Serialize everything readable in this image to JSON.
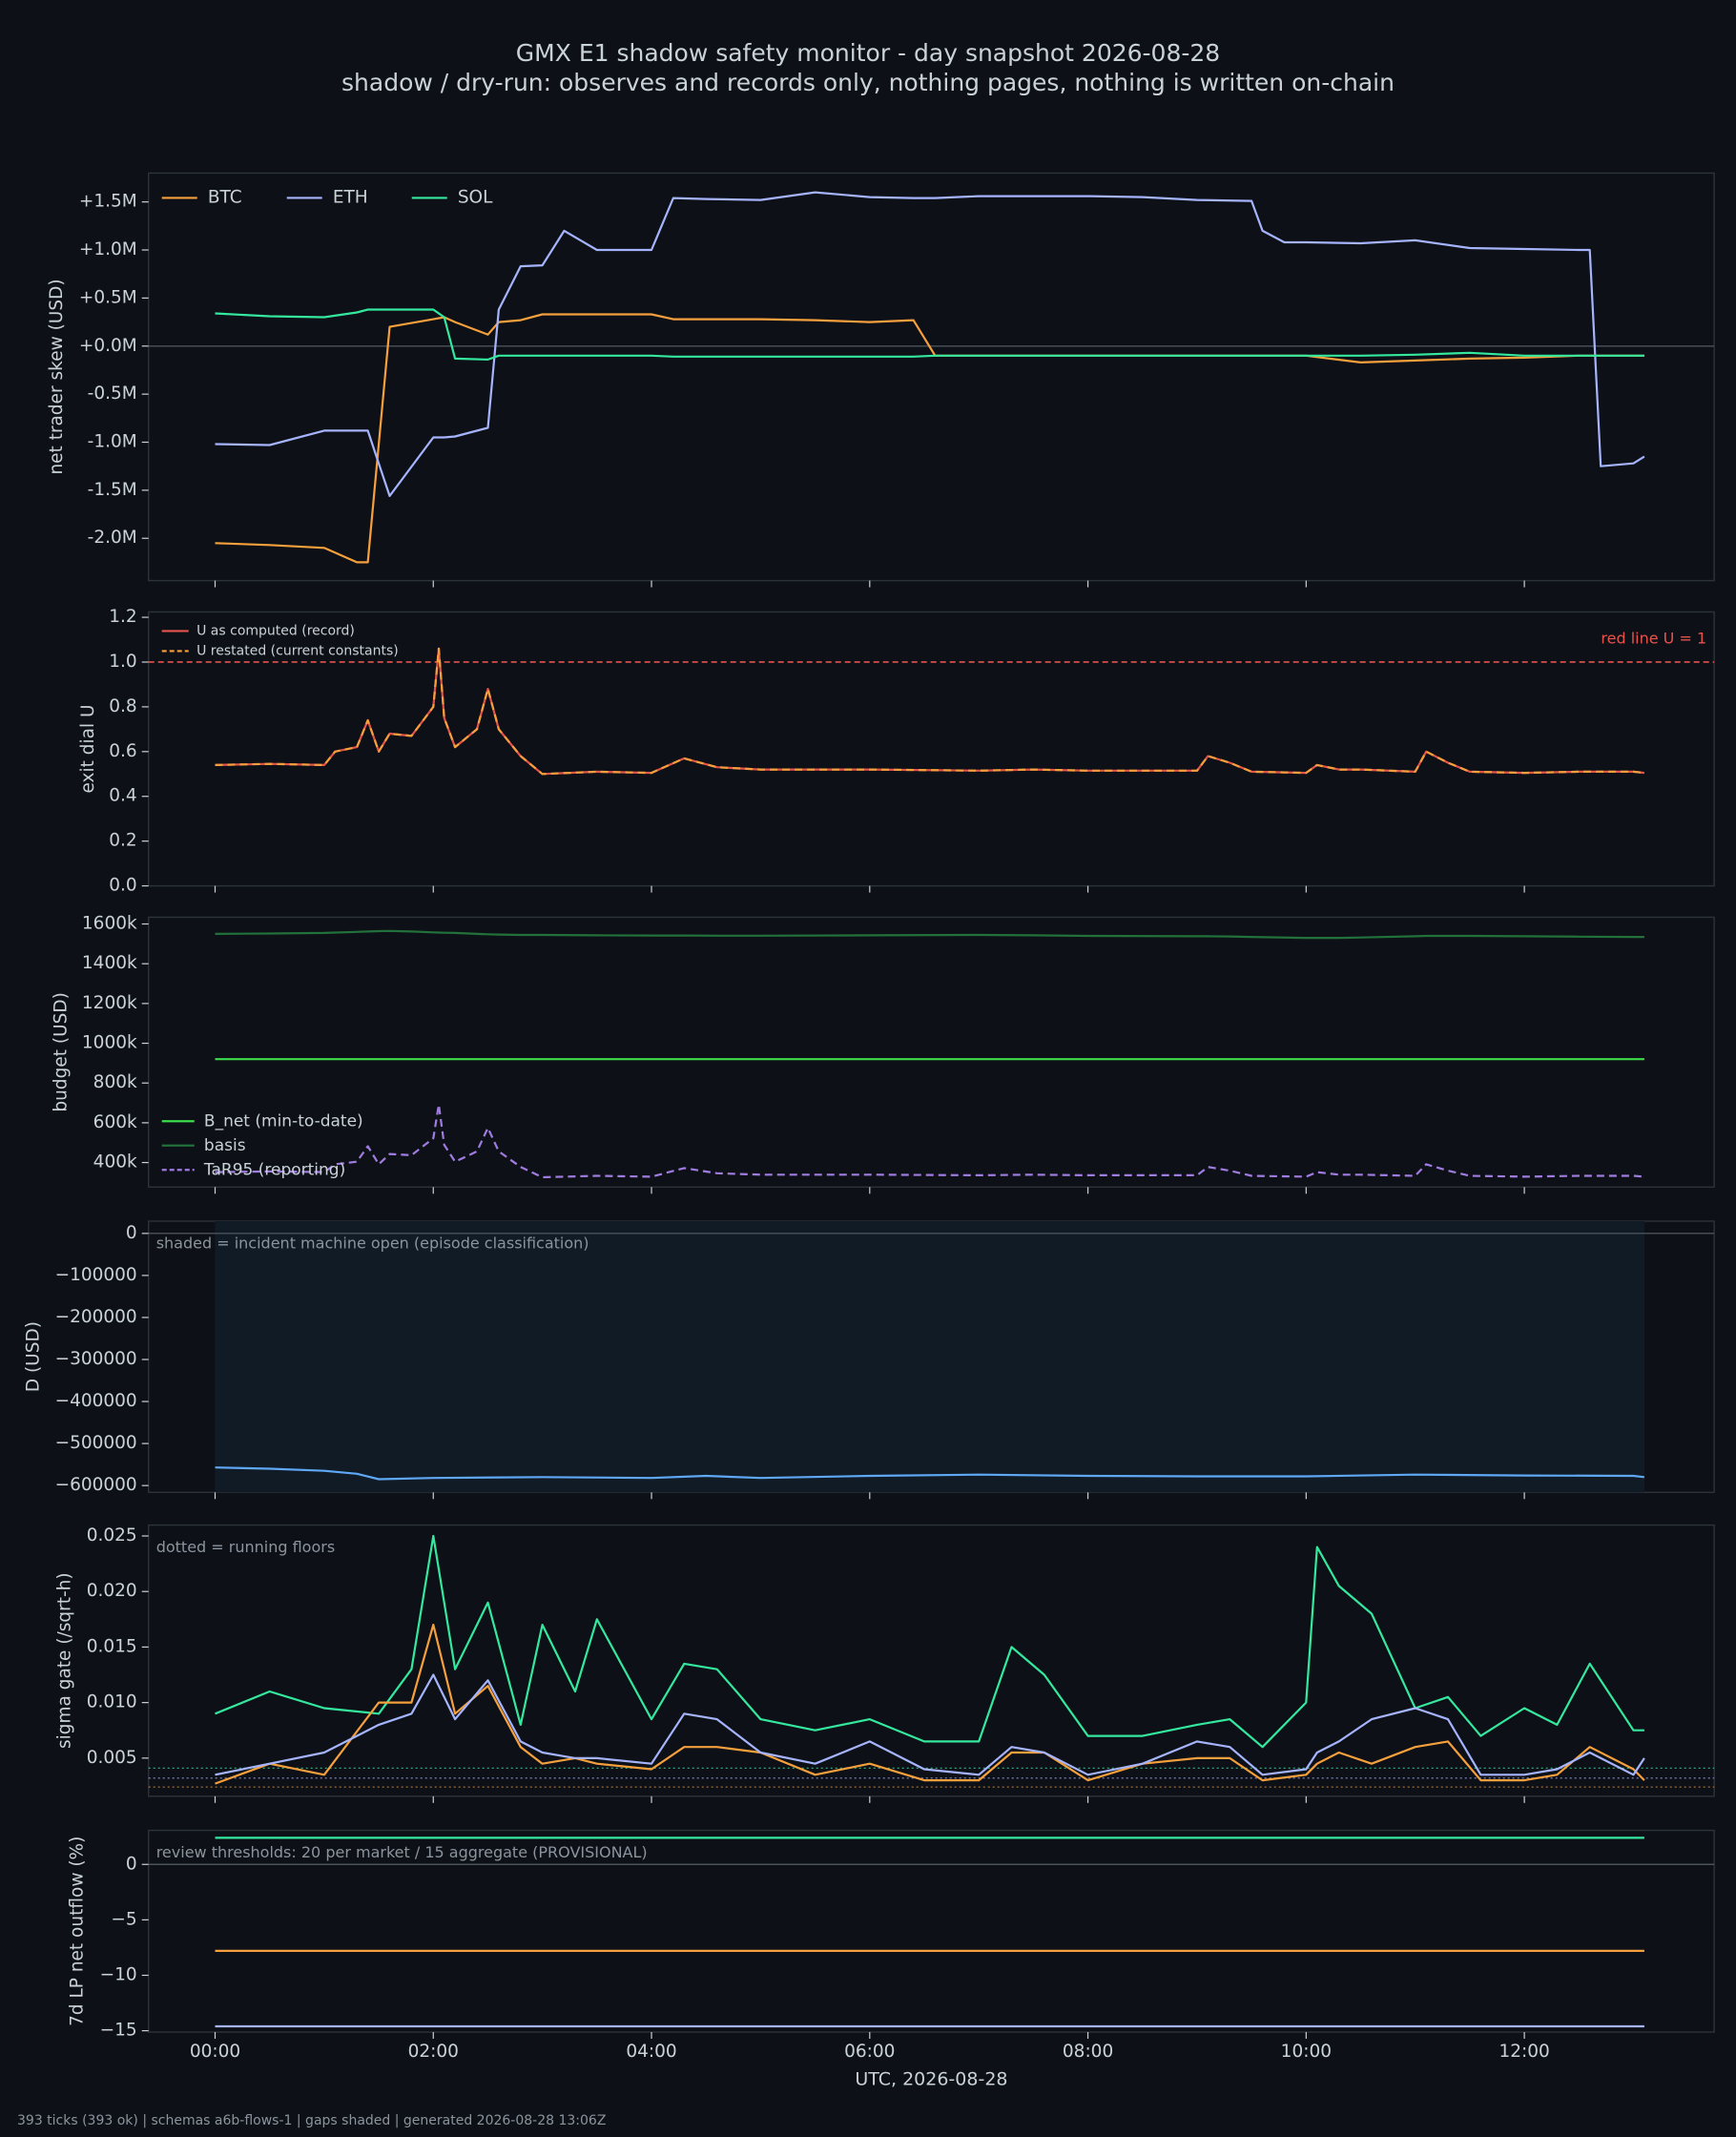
{
  "title": "GMX E1 shadow safety monitor - day snapshot 2026-08-28",
  "subtitle": "shadow / dry-run: observes and records only, nothing pages, nothing is written on-chain",
  "footer": "393 ticks (393 ok) | schemas a6b-flows-1 | gaps shaded | generated 2026-08-28 13:06Z",
  "chart_data": [
    {
      "type": "line",
      "ylabel": "net trader skew (USD)",
      "legend": "upper left",
      "zeroline": true,
      "x": [
        0,
        0.5,
        1,
        1.3,
        1.4,
        1.6,
        2,
        2.1,
        2.2,
        2.5,
        2.6,
        2.8,
        3,
        3.2,
        3.5,
        4,
        4.2,
        4.5,
        5,
        5.5,
        6,
        6.4,
        6.6,
        7,
        7.5,
        8,
        8.5,
        9,
        9.5,
        9.6,
        9.8,
        10,
        10.5,
        11,
        11.5,
        12,
        12.5,
        12.6,
        12.7,
        13,
        13.1
      ],
      "xlim": [
        -0.61,
        13.74
      ],
      "xticks": [
        0,
        2,
        4,
        6,
        8,
        10,
        12
      ],
      "ylim": [
        -2440000,
        1800000
      ],
      "yticks": [
        {
          "value": 1500000,
          "label": "+1.5M"
        },
        {
          "value": 1000000,
          "label": "+1.0M"
        },
        {
          "value": 500000,
          "label": "+0.5M"
        },
        {
          "value": 0,
          "label": "+0.0M"
        },
        {
          "value": -500000,
          "label": "-0.5M"
        },
        {
          "value": -1000000,
          "label": "-1.0M"
        },
        {
          "value": -1500000,
          "label": "-1.5M"
        },
        {
          "value": -2000000,
          "label": "-2.0M"
        }
      ],
      "series": [
        {
          "name": "BTC",
          "color": "#f5a03c",
          "values": [
            -2050000,
            -2070000,
            -2100000,
            -2250000,
            -2250000,
            200000,
            280000,
            300000,
            250000,
            120000,
            250000,
            270000,
            330000,
            330000,
            330000,
            330000,
            280000,
            280000,
            280000,
            270000,
            250000,
            270000,
            -100000,
            -100000,
            -100000,
            -100000,
            -100000,
            -100000,
            -100000,
            -100000,
            -100000,
            -100000,
            -170000,
            -150000,
            -130000,
            -120000,
            -100000,
            -100000,
            -100000,
            -100000,
            -100000
          ]
        },
        {
          "name": "ETH",
          "color": "#a5b4fc",
          "values": [
            -1020000,
            -1030000,
            -880000,
            -880000,
            -880000,
            -1560000,
            -950000,
            -950000,
            -940000,
            -850000,
            380000,
            830000,
            840000,
            1200000,
            1000000,
            1000000,
            1540000,
            1530000,
            1520000,
            1600000,
            1550000,
            1540000,
            1540000,
            1560000,
            1560000,
            1560000,
            1550000,
            1520000,
            1510000,
            1200000,
            1080000,
            1080000,
            1070000,
            1100000,
            1020000,
            1010000,
            1000000,
            1000000,
            -1250000,
            -1220000,
            -1150000
          ]
        },
        {
          "name": "SOL",
          "color": "#34e89e",
          "values": [
            340000,
            310000,
            300000,
            350000,
            380000,
            380000,
            380000,
            300000,
            -130000,
            -140000,
            -100000,
            -100000,
            -100000,
            -100000,
            -100000,
            -100000,
            -110000,
            -110000,
            -110000,
            -110000,
            -110000,
            -110000,
            -100000,
            -100000,
            -100000,
            -100000,
            -100000,
            -100000,
            -100000,
            -100000,
            -100000,
            -100000,
            -100000,
            -90000,
            -70000,
            -100000,
            -100000,
            -100000,
            -100000,
            -100000,
            -100000
          ]
        }
      ]
    },
    {
      "type": "line",
      "ylabel": "exit dial U",
      "legend": "upper left",
      "x": [
        0,
        0.5,
        1,
        1.1,
        1.3,
        1.4,
        1.5,
        1.6,
        1.8,
        2,
        2.05,
        2.1,
        2.2,
        2.4,
        2.5,
        2.6,
        2.8,
        3,
        3.5,
        4,
        4.3,
        4.6,
        5,
        6,
        7,
        7.5,
        8,
        9,
        9.1,
        9.3,
        9.5,
        10,
        10.1,
        10.3,
        10.5,
        11,
        11.1,
        11.3,
        11.5,
        12,
        12.5,
        13,
        13.1
      ],
      "xlim": [
        -0.61,
        13.74
      ],
      "xticks": [
        0,
        2,
        4,
        6,
        8,
        10,
        12
      ],
      "ylim": [
        0,
        1.224
      ],
      "yticks": [
        {
          "value": 0,
          "label": "0.0"
        },
        0.2,
        0.4,
        0.6,
        0.8,
        {
          "value": 1,
          "label": "1.0"
        },
        1.2
      ],
      "hline": {
        "value": 1,
        "label": "red line U = 1",
        "color": "#e5534b"
      },
      "series": [
        {
          "name": "U as computed (record)",
          "color": "#e5534b",
          "values": [
            0.54,
            0.545,
            0.54,
            0.6,
            0.62,
            0.74,
            0.6,
            0.68,
            0.67,
            0.8,
            1.06,
            0.75,
            0.62,
            0.7,
            0.88,
            0.7,
            0.58,
            0.5,
            0.51,
            0.505,
            0.57,
            0.53,
            0.52,
            0.52,
            0.515,
            0.52,
            0.515,
            0.515,
            0.58,
            0.55,
            0.51,
            0.505,
            0.54,
            0.52,
            0.52,
            0.51,
            0.6,
            0.55,
            0.51,
            0.505,
            0.51,
            0.51,
            0.505
          ]
        },
        {
          "name": "U restated (current constants)",
          "color": "#f5a03c",
          "dashed": true,
          "values": [
            0.54,
            0.545,
            0.54,
            0.6,
            0.62,
            0.74,
            0.6,
            0.68,
            0.67,
            0.8,
            1.06,
            0.75,
            0.62,
            0.7,
            0.88,
            0.7,
            0.58,
            0.5,
            0.51,
            0.505,
            0.57,
            0.53,
            0.52,
            0.52,
            0.515,
            0.52,
            0.515,
            0.515,
            0.58,
            0.55,
            0.51,
            0.505,
            0.54,
            0.52,
            0.52,
            0.51,
            0.6,
            0.55,
            0.51,
            0.505,
            0.51,
            0.51,
            0.505
          ]
        }
      ]
    },
    {
      "type": "line",
      "ylabel": "budget (USD)",
      "legend": "lower left",
      "x": [
        0,
        0.5,
        1,
        1.1,
        1.3,
        1.4,
        1.5,
        1.6,
        1.8,
        2,
        2.05,
        2.1,
        2.2,
        2.4,
        2.5,
        2.6,
        2.8,
        3,
        3.5,
        4,
        4.3,
        4.6,
        5,
        6,
        7,
        7.5,
        8,
        9,
        9.1,
        9.3,
        9.5,
        10,
        10.1,
        10.3,
        10.5,
        11,
        11.1,
        11.3,
        11.5,
        12,
        12.5,
        13,
        13.1
      ],
      "xlim": [
        -0.61,
        13.74
      ],
      "xticks": [
        0,
        2,
        4,
        6,
        8,
        10,
        12
      ],
      "ylim": [
        276600,
        1634000
      ],
      "yticks": [
        {
          "value": 1600000,
          "label": "1600k"
        },
        {
          "value": 1400000,
          "label": "1400k"
        },
        {
          "value": 1200000,
          "label": "1200k"
        },
        {
          "value": 1000000,
          "label": "1000k"
        },
        {
          "value": 800000,
          "label": "800k"
        },
        {
          "value": 600000,
          "label": "600k"
        },
        {
          "value": 400000,
          "label": "400k"
        }
      ],
      "series": [
        {
          "name": "B_net (min-to-date)",
          "color": "#3ddc4a",
          "values": [
            920000,
            920000,
            920000,
            920000,
            920000,
            920000,
            920000,
            920000,
            920000,
            920000,
            920000,
            920000,
            920000,
            920000,
            920000,
            920000,
            920000,
            920000,
            920000,
            920000,
            920000,
            920000,
            920000,
            920000,
            920000,
            920000,
            920000,
            920000,
            920000,
            920000,
            920000,
            920000,
            920000,
            920000,
            920000,
            920000,
            920000,
            920000,
            920000,
            920000,
            920000,
            920000,
            920000
          ]
        },
        {
          "name": "basis",
          "color": "#22703a",
          "values": [
            1550000,
            1552000,
            1555000,
            1557000,
            1560000,
            1562000,
            1564000,
            1565000,
            1562000,
            1558000,
            1557000,
            1556000,
            1555000,
            1550000,
            1548000,
            1547000,
            1545000,
            1545000,
            1543000,
            1542000,
            1542000,
            1541000,
            1541000,
            1543000,
            1545000,
            1543000,
            1540000,
            1538000,
            1538000,
            1537000,
            1535000,
            1530000,
            1530000,
            1530000,
            1532000,
            1538000,
            1540000,
            1540000,
            1540000,
            1538000,
            1536000,
            1535000,
            1535000
          ]
        },
        {
          "name": "TaR95 (reporting)",
          "color": "#a07ce0",
          "dashed": true,
          "values": [
            352000,
            355000,
            352000,
            391000,
            404000,
            482000,
            391000,
            443000,
            437000,
            522000,
            691000,
            489000,
            404000,
            456000,
            574000,
            456000,
            378000,
            326000,
            333000,
            329000,
            372000,
            346000,
            339000,
            339000,
            336000,
            339000,
            336000,
            336000,
            378000,
            359000,
            333000,
            329000,
            352000,
            339000,
            339000,
            333000,
            391000,
            359000,
            333000,
            329000,
            333000,
            333000,
            329000
          ]
        }
      ]
    },
    {
      "type": "line",
      "ylabel": "D (USD)",
      "zeroline": true,
      "shade": {
        "x": [
          0,
          13.1
        ],
        "label": "shaded = incident machine open (episode classification)"
      },
      "x": [
        0,
        0.5,
        1,
        1.3,
        1.5,
        2,
        3,
        4,
        4.5,
        5,
        6,
        7,
        8,
        9,
        10,
        11,
        12,
        13,
        13.1
      ],
      "xlim": [
        -0.61,
        13.74
      ],
      "xticks": [
        0,
        2,
        4,
        6,
        8,
        10,
        12
      ],
      "ylim": [
        -616200,
        29200
      ],
      "yticks": [
        0,
        {
          "value": -100000,
          "label": "−100000"
        },
        {
          "value": -200000,
          "label": "−200000"
        },
        {
          "value": -300000,
          "label": "−300000"
        },
        {
          "value": -400000,
          "label": "−400000"
        },
        {
          "value": -500000,
          "label": "−500000"
        },
        {
          "value": -600000,
          "label": "−600000"
        }
      ],
      "series": [
        {
          "color": "#5ea8f5",
          "values": [
            -557000,
            -560000,
            -565000,
            -572000,
            -585000,
            -582000,
            -580000,
            -582000,
            -577000,
            -582000,
            -577000,
            -574000,
            -577000,
            -578000,
            -578000,
            -574000,
            -576000,
            -577000,
            -580000
          ]
        }
      ]
    },
    {
      "type": "line",
      "ylabel": "sigma gate (/sqrt-h)",
      "note": "dotted = running floors",
      "x": [
        0,
        0.5,
        1,
        1.5,
        1.8,
        2,
        2.2,
        2.5,
        2.8,
        3,
        3.3,
        3.5,
        4,
        4.3,
        4.6,
        5,
        5.5,
        6,
        6.5,
        7,
        7.3,
        7.6,
        8,
        8.5,
        9,
        9.3,
        9.6,
        10,
        10.1,
        10.3,
        10.6,
        11,
        11.3,
        11.6,
        12,
        12.3,
        12.6,
        13,
        13.1
      ],
      "xlim": [
        -0.61,
        13.74
      ],
      "xticks": [
        0,
        2,
        4,
        6,
        8,
        10,
        12
      ],
      "ylim": [
        0.001564,
        0.02598
      ],
      "yticks": [
        0.005,
        {
          "value": 0.01,
          "label": "0.010"
        },
        0.015,
        {
          "value": 0.02,
          "label": "0.020"
        },
        0.025
      ],
      "series": [
        {
          "color": "#34e89e",
          "floor": 0.0041,
          "values": [
            0.009,
            0.011,
            0.0095,
            0.009,
            0.013,
            0.025,
            0.013,
            0.019,
            0.008,
            0.017,
            0.011,
            0.0175,
            0.0085,
            0.0135,
            0.013,
            0.0085,
            0.0075,
            0.0085,
            0.0065,
            0.0065,
            0.015,
            0.0125,
            0.007,
            0.007,
            0.008,
            0.0085,
            0.006,
            0.01,
            0.024,
            0.0205,
            0.018,
            0.0095,
            0.0105,
            0.007,
            0.0095,
            0.008,
            0.0135,
            0.0075,
            0.0075
          ]
        },
        {
          "color": "#f5a03c",
          "floor": 0.0024,
          "values": [
            0.0027,
            0.0045,
            0.0035,
            0.01,
            0.01,
            0.017,
            0.009,
            0.0115,
            0.006,
            0.0045,
            0.005,
            0.0045,
            0.004,
            0.006,
            0.006,
            0.0055,
            0.0035,
            0.0045,
            0.003,
            0.003,
            0.0055,
            0.0055,
            0.003,
            0.0045,
            0.005,
            0.005,
            0.003,
            0.0035,
            0.0045,
            0.0055,
            0.0045,
            0.006,
            0.0065,
            0.003,
            0.003,
            0.0035,
            0.006,
            0.004,
            0.003
          ]
        },
        {
          "color": "#a5b4fc",
          "floor": 0.0032,
          "values": [
            0.0035,
            0.0045,
            0.0055,
            0.008,
            0.009,
            0.0125,
            0.0085,
            0.012,
            0.0065,
            0.0055,
            0.005,
            0.005,
            0.0045,
            0.009,
            0.0085,
            0.0055,
            0.0045,
            0.0065,
            0.004,
            0.0035,
            0.006,
            0.0055,
            0.0035,
            0.0045,
            0.0065,
            0.006,
            0.0035,
            0.004,
            0.0055,
            0.0065,
            0.0085,
            0.0095,
            0.0085,
            0.0035,
            0.0035,
            0.004,
            0.0055,
            0.0035,
            0.005
          ]
        }
      ]
    },
    {
      "type": "line",
      "ylabel": "7d LP net outflow (%)",
      "xlabel": "UTC, 2026-08-28",
      "zeroline": true,
      "note": "review thresholds: 20 per market / 15 aggregate (PROVISIONAL)",
      "x": [
        0,
        13.1
      ],
      "xlim": [
        -0.61,
        13.74
      ],
      "xticks": [
        {
          "value": 0,
          "label": "00:00"
        },
        {
          "value": 2,
          "label": "02:00"
        },
        {
          "value": 4,
          "label": "04:00"
        },
        {
          "value": 6,
          "label": "06:00"
        },
        {
          "value": 8,
          "label": "08:00"
        },
        {
          "value": 10,
          "label": "10:00"
        },
        {
          "value": 12,
          "label": "12:00"
        }
      ],
      "ylim": [
        -15.12,
        3.07
      ],
      "yticks": [
        0,
        {
          "value": -5,
          "label": "−5"
        },
        {
          "value": -10,
          "label": "−10"
        },
        {
          "value": -15,
          "label": "−15"
        }
      ],
      "series": [
        {
          "color": "#34e89e",
          "values": [
            2.4,
            2.4
          ]
        },
        {
          "color": "#f5a03c",
          "values": [
            -7.8,
            -7.8
          ]
        },
        {
          "color": "#a5b4fc",
          "values": [
            -14.6,
            -14.6
          ]
        }
      ]
    }
  ]
}
